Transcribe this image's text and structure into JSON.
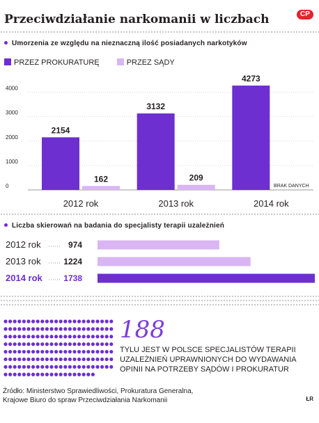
{
  "header": {
    "title": "Przeciwdziałanie narkomanii w liczbach",
    "logo": "CP"
  },
  "colors": {
    "dark_purple": "#6d2fd0",
    "light_purple": "#d9b6f3",
    "big_number": "#7a3ed8",
    "dots": "#c9c9c9"
  },
  "section1": {
    "title": "Umorzenia ze względu na nieznaczną ilość posiadanych narkotyków",
    "legend": [
      "PRZEZ PROKURATURĘ",
      "PRZEZ SĄDY"
    ],
    "brak_danych": "BRAK DANYCH"
  },
  "section2": {
    "title": "Liczba skierowań na badania do specjalisty terapii uzależnień"
  },
  "chart_data": [
    {
      "type": "bar",
      "title": "Umorzenia ze względu na nieznaczną ilość posiadanych narkotyków",
      "categories": [
        "2012 rok",
        "2013 rok",
        "2014 rok"
      ],
      "series": [
        {
          "name": "PRZEZ PROKURATURĘ",
          "values": [
            2154,
            3132,
            4273
          ]
        },
        {
          "name": "PRZEZ SĄDY",
          "values": [
            162,
            209,
            null
          ]
        }
      ],
      "yticks": [
        0,
        1000,
        2000,
        3000,
        4000
      ],
      "ylim": [
        0,
        4700
      ],
      "grid": true,
      "legend": "top-left"
    },
    {
      "type": "bar",
      "orientation": "horizontal",
      "title": "Liczba skierowań na badania do specjalisty terapii uzależnień",
      "categories": [
        "2012 rok",
        "2013 rok",
        "2014 rok"
      ],
      "values": [
        974,
        1224,
        1738
      ],
      "value_labels": [
        "974",
        "1224",
        "1738"
      ]
    }
  ],
  "info": {
    "big_number": "188",
    "text": "TYLU JEST W POLSCE SPECJALISTÓW TERAPII UZALEŻNIEŃ UPRAWNIONYCH DO WYDAWANIA OPINII NA POTRZEBY SĄDÓW I PROKURATUR",
    "dots_count": 188
  },
  "footer": {
    "source_line1": "Źródło: Ministerstwo Sprawiedliwości, Prokuratura Generalna,",
    "source_line2": "Krajowe Biuro do spraw Przeciwdziałania Narkomanii",
    "signature": "ŁR"
  }
}
